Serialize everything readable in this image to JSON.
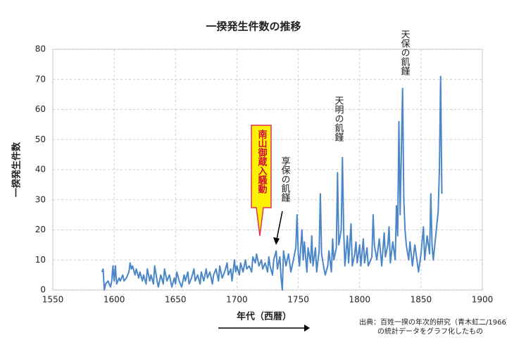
{
  "chart_data": {
    "type": "line",
    "title": "一揆発生件数の推移",
    "y_label": "一揆発生件数",
    "x_label": "年代（西暦）",
    "source": [
      "出典：百姓一揆の年次的研究（青木虹二/1966）",
      "の統計データをグラフ化したもの"
    ],
    "annotations": [
      "南山御蔵入騒動",
      "享保の飢饉",
      "天明の飢饉",
      "天保の飢饉"
    ],
    "x": [
      1590,
      1591,
      1592,
      1593,
      1595,
      1597,
      1598,
      1599,
      1600,
      1601,
      1602,
      1604,
      1605,
      1607,
      1608,
      1610,
      1612,
      1613,
      1614,
      1615,
      1617,
      1618,
      1620,
      1621,
      1623,
      1624,
      1626,
      1627,
      1629,
      1630,
      1632,
      1633,
      1635,
      1636,
      1638,
      1640,
      1641,
      1643,
      1645,
      1647,
      1649,
      1650,
      1651,
      1653,
      1655,
      1657,
      1658,
      1660,
      1661,
      1663,
      1665,
      1666,
      1668,
      1670,
      1671,
      1673,
      1675,
      1676,
      1678,
      1680,
      1681,
      1683,
      1685,
      1686,
      1688,
      1690,
      1692,
      1693,
      1695,
      1696,
      1698,
      1699,
      1700,
      1702,
      1703,
      1705,
      1707,
      1708,
      1710,
      1712,
      1713,
      1715,
      1716,
      1718,
      1720,
      1721,
      1723,
      1725,
      1726,
      1727,
      1729,
      1730,
      1732,
      1733,
      1735,
      1736,
      1737,
      1738,
      1740,
      1742,
      1744,
      1746,
      1748,
      1749,
      1750,
      1751,
      1753,
      1754,
      1755,
      1757,
      1758,
      1760,
      1761,
      1762,
      1764,
      1765,
      1767,
      1768,
      1769,
      1771,
      1772,
      1774,
      1775,
      1777,
      1778,
      1779,
      1781,
      1782,
      1783,
      1785,
      1786,
      1787,
      1788,
      1790,
      1791,
      1793,
      1794,
      1796,
      1797,
      1798,
      1800,
      1801,
      1803,
      1804,
      1806,
      1807,
      1810,
      1811,
      1812,
      1814,
      1816,
      1818,
      1820,
      1821,
      1823,
      1824,
      1825,
      1827,
      1829,
      1830,
      1831,
      1832,
      1833,
      1835,
      1836,
      1837,
      1838,
      1840,
      1841,
      1843,
      1845,
      1846,
      1848,
      1850,
      1852,
      1853,
      1855,
      1857,
      1858,
      1859,
      1860,
      1862,
      1864,
      1865,
      1866,
      1867
    ],
    "series": [
      {
        "name": "一揆発生件数",
        "color": "#4a86c8",
        "values": [
          6,
          7,
          0,
          2,
          3,
          1,
          3,
          8,
          3,
          8,
          2,
          4,
          3,
          5,
          3,
          4,
          6,
          9,
          7,
          8,
          5,
          7,
          4,
          6,
          3,
          5,
          2,
          7,
          3,
          5,
          2,
          8,
          3,
          1,
          5,
          2,
          7,
          3,
          5,
          1,
          4,
          2,
          6,
          3,
          1,
          5,
          3,
          6,
          2,
          4,
          7,
          3,
          5,
          2,
          6,
          3,
          7,
          4,
          6,
          2,
          5,
          7,
          3,
          8,
          4,
          6,
          9,
          5,
          7,
          3,
          10,
          6,
          8,
          5,
          9,
          6,
          10,
          7,
          8,
          6,
          11,
          9,
          12,
          8,
          10,
          7,
          9,
          6,
          11,
          8,
          5,
          10,
          13,
          7,
          11,
          4,
          0,
          13,
          8,
          12,
          6,
          10,
          14,
          25,
          12,
          8,
          20,
          10,
          16,
          6,
          14,
          9,
          18,
          8,
          14,
          6,
          13,
          32,
          12,
          7,
          5,
          8,
          13,
          6,
          17,
          10,
          14,
          39,
          15,
          20,
          44,
          20,
          8,
          18,
          9,
          22,
          8,
          12,
          16,
          9,
          15,
          8,
          17,
          9,
          14,
          8,
          11,
          25,
          15,
          10,
          17,
          8,
          19,
          11,
          15,
          21,
          9,
          16,
          10,
          28,
          18,
          56,
          25,
          67,
          30,
          20,
          15,
          10,
          16,
          8,
          15,
          12,
          6,
          12,
          21,
          10,
          18,
          12,
          32,
          15,
          10,
          18,
          26,
          40,
          71,
          32
        ]
      }
    ],
    "xlim": [
      1550,
      1900
    ],
    "xticks": [
      1550,
      1600,
      1650,
      1700,
      1750,
      1800,
      1850,
      1900
    ],
    "ylim": [
      0,
      80
    ],
    "yticks": [
      0,
      10,
      20,
      30,
      40,
      50,
      60,
      70,
      80
    ],
    "grid": true
  }
}
